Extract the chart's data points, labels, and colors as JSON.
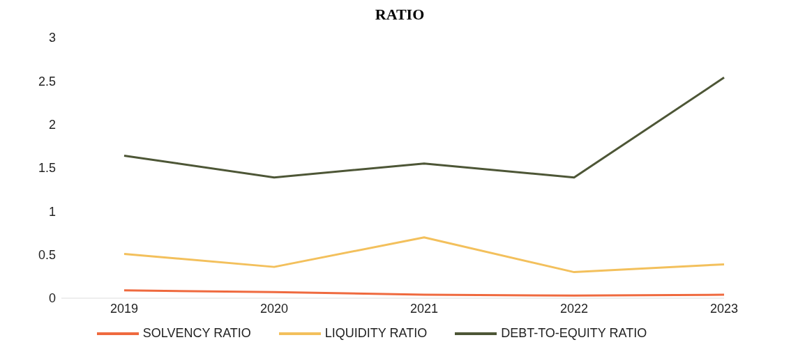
{
  "chart_data": {
    "type": "line",
    "title": "RATIO",
    "categories": [
      "2019",
      "2020",
      "2021",
      "2022",
      "2023"
    ],
    "series": [
      {
        "name": "SOLVENCY RATIO",
        "color": "#ef6a3f",
        "values": [
          0.09,
          0.07,
          0.04,
          0.03,
          0.04
        ]
      },
      {
        "name": "LIQUIDITY RATIO",
        "color": "#f3c05c",
        "values": [
          0.51,
          0.36,
          0.7,
          0.3,
          0.39
        ]
      },
      {
        "name": "DEBT-TO-EQUITY RATIO",
        "color": "#4d5636",
        "values": [
          1.64,
          1.39,
          1.55,
          1.39,
          2.54
        ]
      }
    ],
    "ylim": [
      0,
      3
    ],
    "yticks": [
      0,
      0.5,
      1,
      1.5,
      2,
      2.5,
      3
    ],
    "legend": "bottom"
  }
}
